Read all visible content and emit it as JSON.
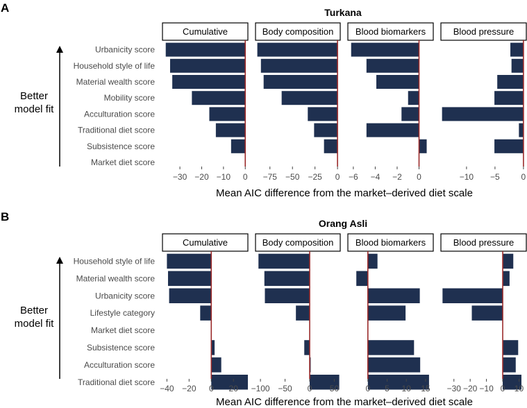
{
  "xlabel": "Mean AIC difference from the market–derived diet scale",
  "side_label_line1": "Better",
  "side_label_line2": "model fit",
  "colors": {
    "bar": "#1f3050",
    "zero_line": "#9b2b2b",
    "frame": "#000000",
    "strip_fill": "#ffffff"
  },
  "chart_data": [
    {
      "type": "bar",
      "orientation": "horizontal",
      "panel_label": "A",
      "title": "Turkana",
      "categories": [
        "Urbanicity score",
        "Household style of life",
        "Material wealth score",
        "Mobility score",
        "Acculturation score",
        "Traditional diet score",
        "Subsistence score",
        "Market diet score"
      ],
      "facets": [
        {
          "label": "Cumulative",
          "xlim": [
            -38,
            1.2
          ],
          "ticks": [
            -30,
            -20,
            -10,
            0
          ],
          "tick_labels": [
            "−30",
            "−20",
            "−10",
            "0"
          ],
          "values": [
            -36.5,
            -34.5,
            -33.5,
            -24.5,
            -16.5,
            -13.5,
            -6.5,
            0
          ]
        },
        {
          "label": "Body composition",
          "xlim": [
            -91,
            3
          ],
          "ticks": [
            -75,
            -50,
            -25,
            0
          ],
          "tick_labels": [
            "−75",
            "−50",
            "−25",
            "0"
          ],
          "values": [
            -89,
            -85,
            -82,
            -62,
            -33,
            -26,
            -15,
            0
          ]
        },
        {
          "label": "Blood biomarkers",
          "xlim": [
            -6.5,
            1.3
          ],
          "ticks": [
            -6,
            -4,
            -2,
            0
          ],
          "tick_labels": [
            "−6",
            "−4",
            "−2",
            "0"
          ],
          "values": [
            -6.2,
            -4.8,
            -3.9,
            -1.0,
            -1.6,
            -4.8,
            0.7,
            0
          ]
        },
        {
          "label": "Blood pressure",
          "xlim": [
            -14.5,
            0.5
          ],
          "ticks": [
            -10,
            -5,
            0
          ],
          "tick_labels": [
            "−10",
            "−5",
            "0"
          ],
          "values": [
            -2.3,
            -2.1,
            -4.6,
            -5.1,
            -14.3,
            -0.8,
            -5.1,
            0
          ]
        }
      ]
    },
    {
      "type": "bar",
      "orientation": "horizontal",
      "panel_label": "B",
      "title": "Orang Asli",
      "categories": [
        "Household style of life",
        "Material wealth score",
        "Urbanicity score",
        "Lifestyle category",
        "Market diet score",
        "Subsistence score",
        "Acculturation score",
        "Traditional diet score"
      ],
      "facets": [
        {
          "label": "Cumulative",
          "xlim": [
            -44,
            33
          ],
          "ticks": [
            -40,
            -20,
            0,
            20
          ],
          "tick_labels": [
            "−40",
            "−20",
            "0",
            "20"
          ],
          "values": [
            -40,
            -39,
            -38,
            -10,
            0,
            3,
            9,
            33
          ]
        },
        {
          "label": "Body composition",
          "xlim": [
            -110,
            62
          ],
          "ticks": [
            -100,
            -50,
            0,
            50
          ],
          "tick_labels": [
            "−100",
            "−50",
            "0",
            "50"
          ],
          "values": [
            -104,
            -92,
            -91,
            -28,
            0,
            -11,
            2,
            60
          ]
        },
        {
          "label": "Blood biomarkers",
          "xlim": [
            -5.2,
            17
          ],
          "ticks": [
            0,
            5,
            10,
            15
          ],
          "tick_labels": [
            "0",
            "5",
            "10",
            "15"
          ],
          "values": [
            2.5,
            -3.0,
            13.5,
            9.8,
            0,
            12.0,
            13.6,
            15.9
          ]
        },
        {
          "label": "Blood pressure",
          "xlim": [
            -38,
            14.5
          ],
          "ticks": [
            -30,
            -20,
            -10,
            0,
            10
          ],
          "tick_labels": [
            "−30",
            "−20",
            "−10",
            "0",
            "10"
          ],
          "values": [
            6.5,
            4.2,
            -37,
            -19,
            0,
            9.5,
            8,
            11.5
          ]
        }
      ]
    }
  ]
}
